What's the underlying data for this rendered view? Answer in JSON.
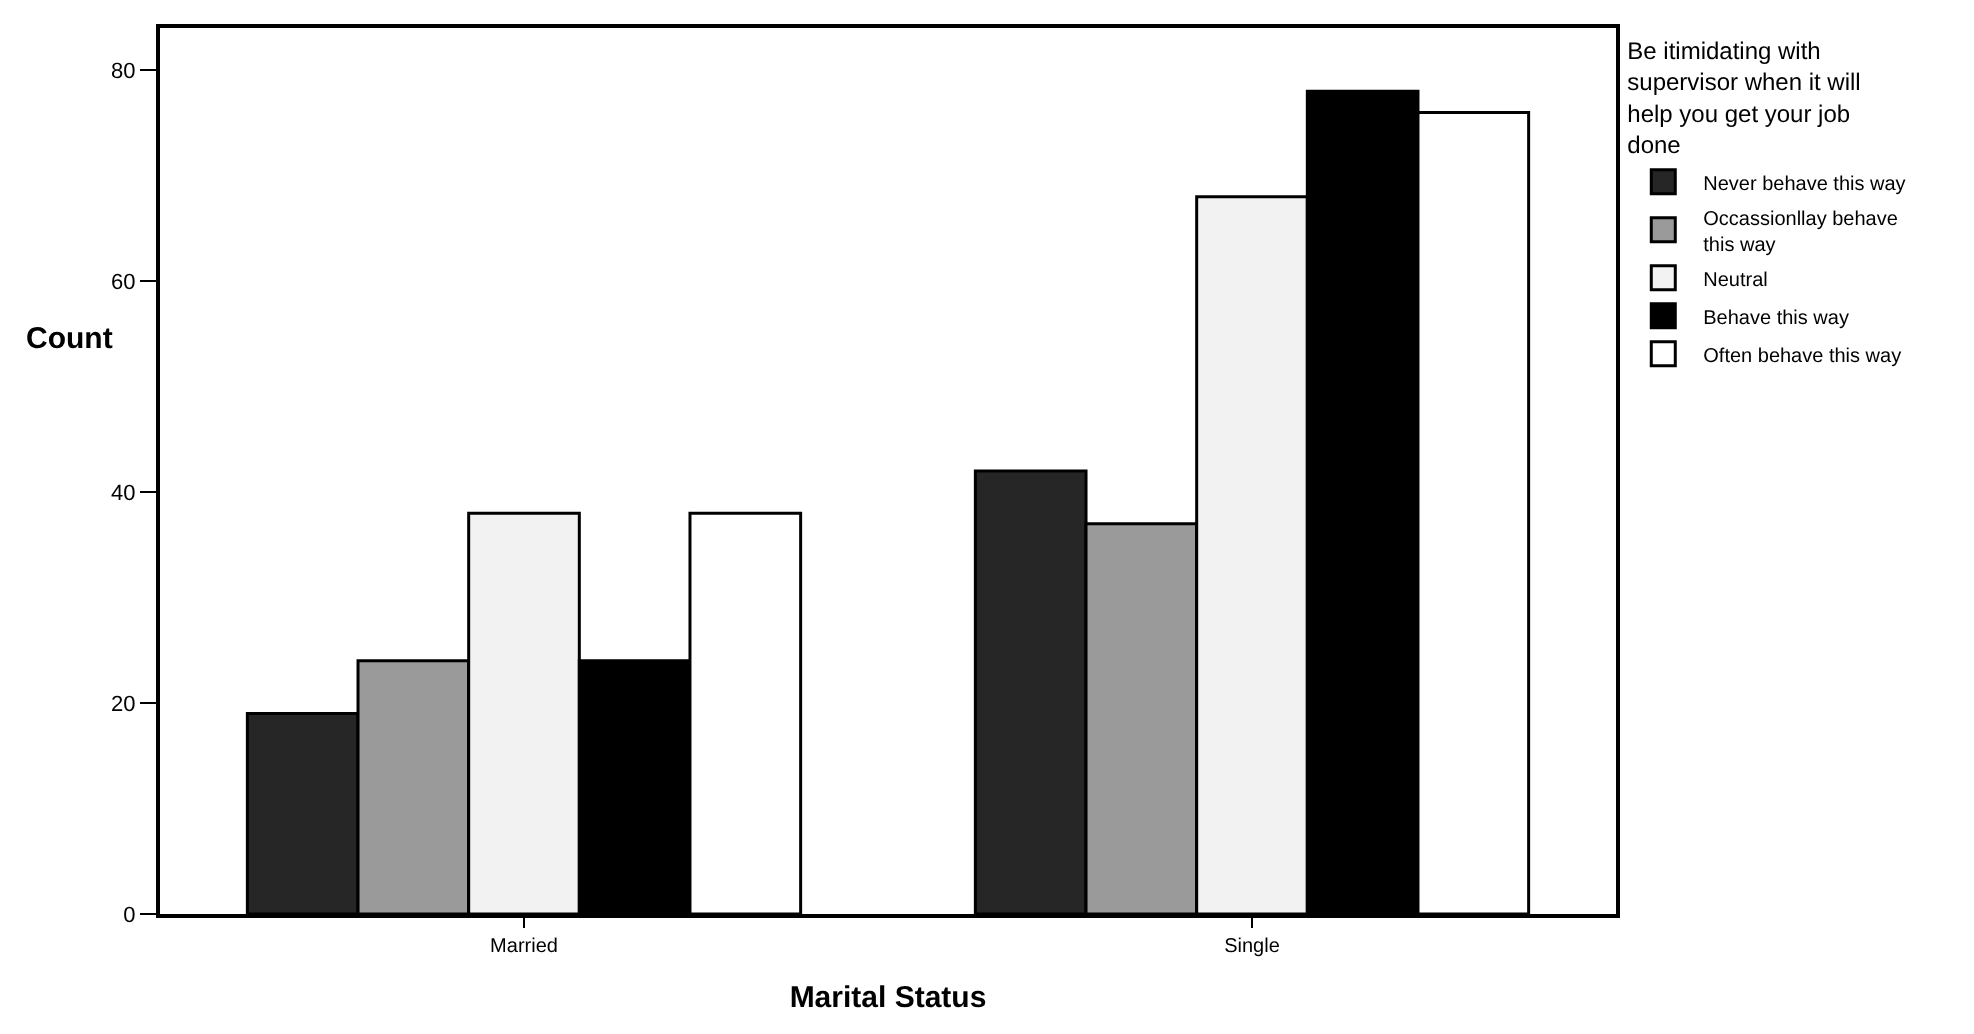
{
  "chart_data": {
    "type": "bar",
    "xlabel": "Marital Status",
    "ylabel": "Count",
    "legend_title": "Be itimidating with supervisor when it will help you get your job done",
    "categories": [
      "Married",
      "Single"
    ],
    "series": [
      {
        "name": "Never behave this way",
        "color": "#262626",
        "values": [
          19,
          42
        ]
      },
      {
        "name": "Occassionllay behave this way",
        "color": "#9a9a9a",
        "values": [
          24,
          37
        ]
      },
      {
        "name": "Neutral",
        "color": "#f2f2f2",
        "values": [
          38,
          68
        ]
      },
      {
        "name": "Behave this way",
        "color": "#000000",
        "values": [
          24,
          78
        ]
      },
      {
        "name": "Often behave this way",
        "color": "#ffffff",
        "values": [
          38,
          76
        ]
      }
    ],
    "ylim": [
      0,
      84
    ],
    "yticks": [
      0,
      20,
      40,
      60,
      80
    ],
    "legend": "right"
  }
}
